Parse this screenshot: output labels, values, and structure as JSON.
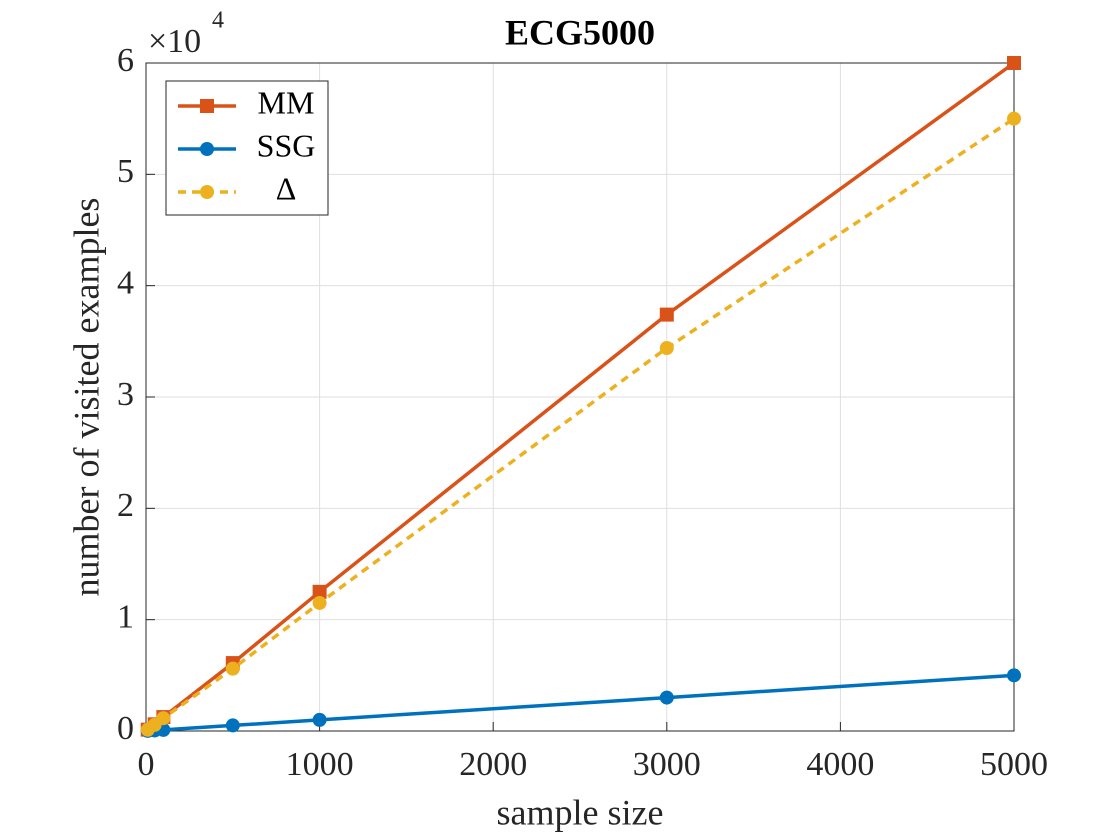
{
  "chart_data": {
    "type": "line",
    "title": "ECG5000",
    "xlabel": "sample size",
    "ylabel": "number of visited examples",
    "y_multiplier": {
      "base": "×10",
      "exponent": "4"
    },
    "x": [
      10,
      50,
      100,
      500,
      1000,
      3000,
      5000
    ],
    "series": [
      {
        "name": "MM",
        "color": "#D95319",
        "dash": false,
        "marker": "square",
        "values": [
          120,
          600,
          1250,
          6100,
          12500,
          37400,
          60000
        ]
      },
      {
        "name": "SSG",
        "color": "#0072BD",
        "dash": false,
        "marker": "circle",
        "values": [
          10,
          50,
          100,
          500,
          1000,
          3000,
          5000
        ]
      },
      {
        "name": "Δ",
        "color": "#EDB120",
        "dash": true,
        "marker": "circle",
        "values": [
          110,
          550,
          1150,
          5600,
          11500,
          34400,
          55000
        ]
      }
    ],
    "xlim": [
      0,
      5000
    ],
    "xticks": [
      0,
      1000,
      2000,
      3000,
      4000,
      5000
    ],
    "ylim": [
      0,
      60000
    ],
    "yticks": [
      {
        "value": 0,
        "label": "0"
      },
      {
        "value": 10000,
        "label": "1"
      },
      {
        "value": 20000,
        "label": "2"
      },
      {
        "value": 30000,
        "label": "3"
      },
      {
        "value": 40000,
        "label": "4"
      },
      {
        "value": 50000,
        "label": "5"
      },
      {
        "value": 60000,
        "label": "6"
      }
    ],
    "grid": true,
    "legend": "upper left"
  }
}
